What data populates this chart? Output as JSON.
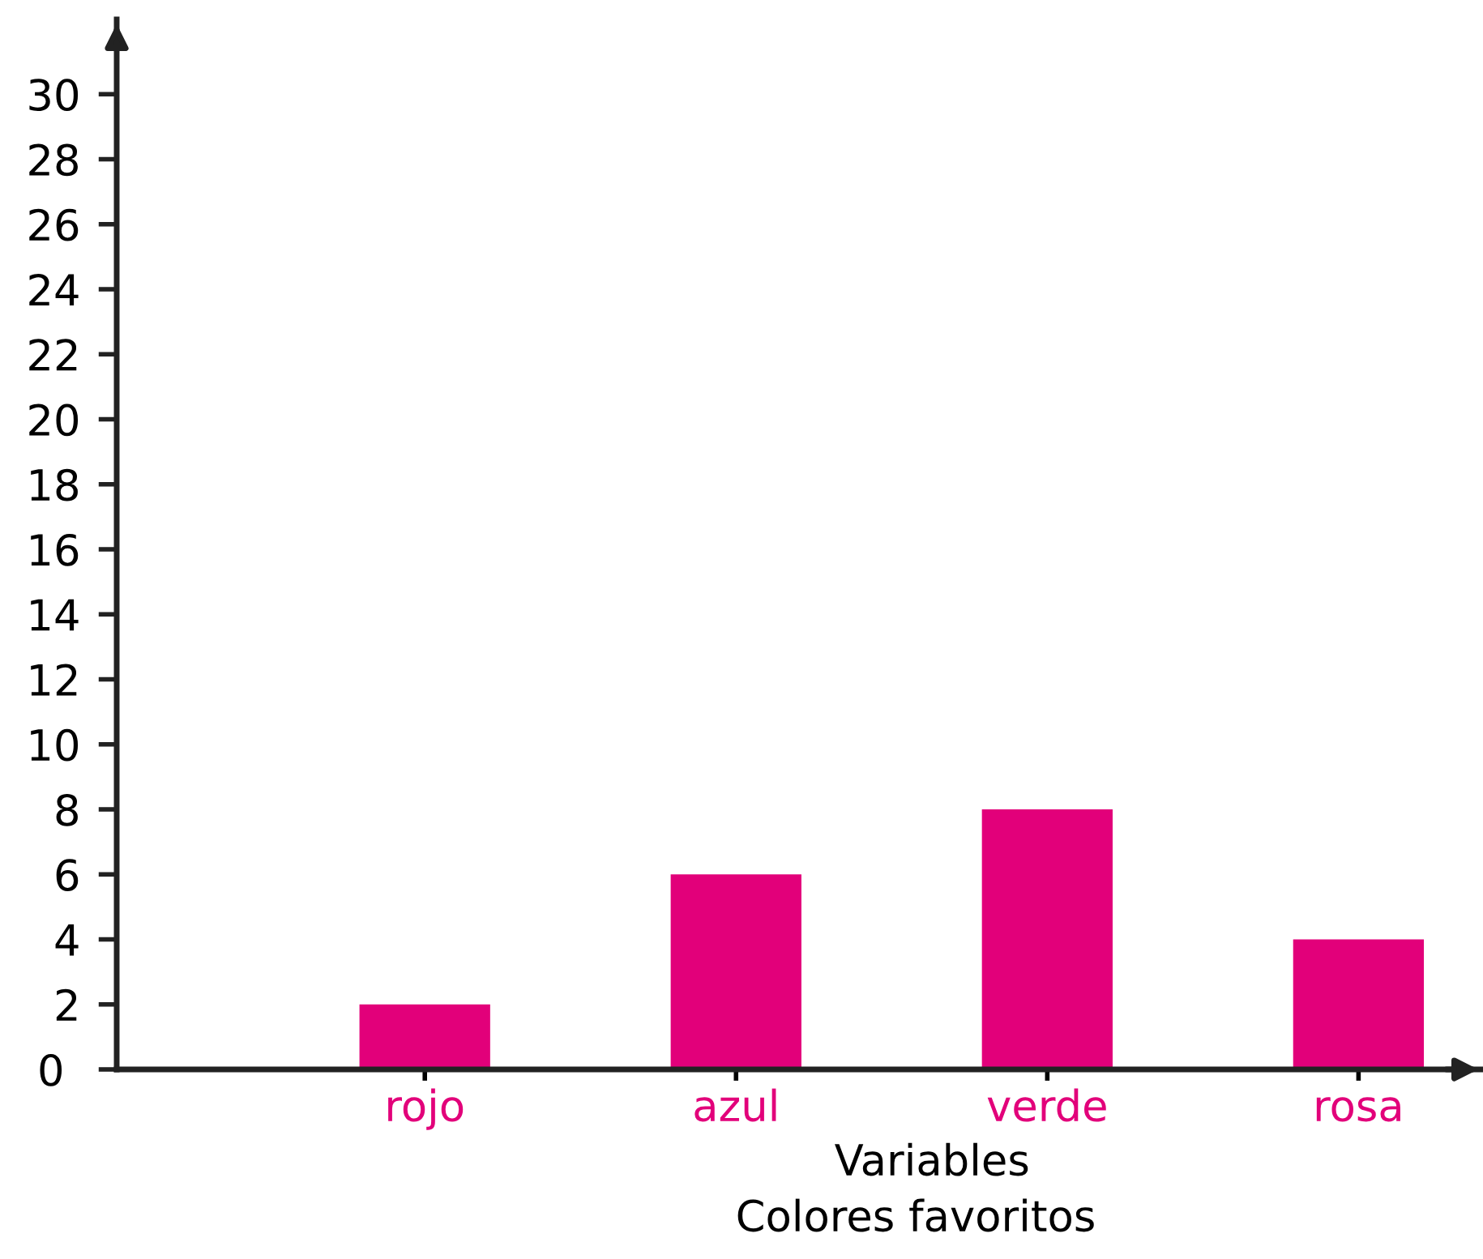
{
  "chart_data": {
    "type": "bar",
    "categories": [
      "rojo",
      "azul",
      "verde",
      "rosa"
    ],
    "values": [
      2,
      6,
      8,
      4
    ],
    "color": "#e2007a",
    "xlabel": "Variables",
    "annotations": [
      "Colores favoritos"
    ],
    "ylim": [
      0,
      32.3
    ],
    "yticks": [
      0,
      2,
      4,
      6,
      8,
      10,
      12,
      14,
      16,
      18,
      20,
      22,
      24,
      26,
      28,
      30
    ],
    "grid": false,
    "legend": false
  }
}
